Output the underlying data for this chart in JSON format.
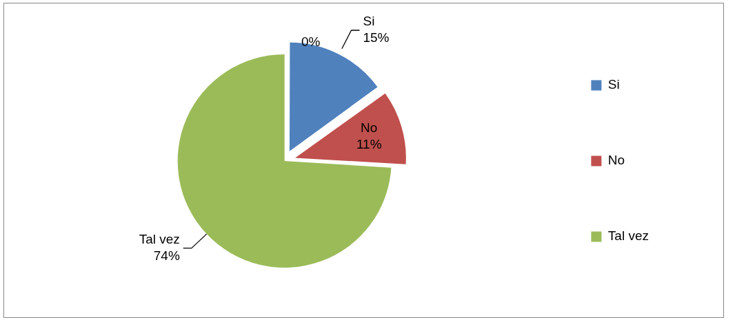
{
  "chart_data": {
    "type": "pie",
    "categories": [
      "Si",
      "No",
      "Tal vez"
    ],
    "values": [
      15,
      11,
      74
    ],
    "value_labels": [
      "15%",
      "11%",
      "74%"
    ],
    "colors": [
      "#4f81bd",
      "#c0504d",
      "#9bbb59"
    ],
    "annotations": [
      "0%"
    ],
    "legend": "right"
  }
}
